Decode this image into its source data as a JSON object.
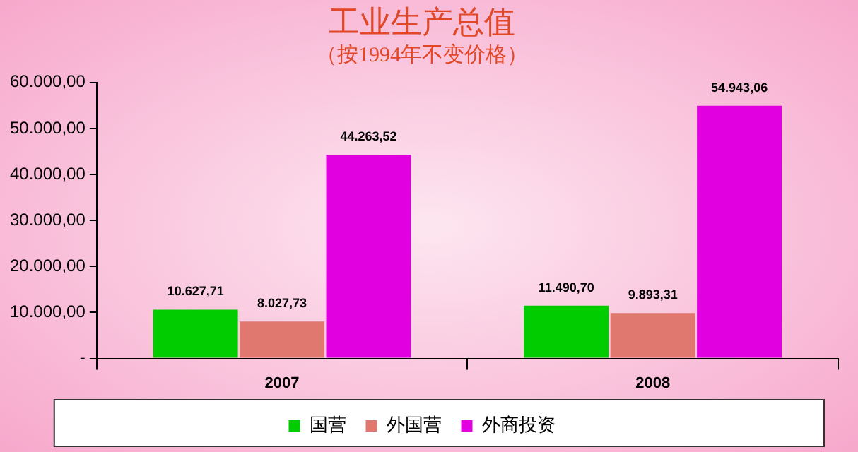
{
  "chart_data": {
    "type": "bar",
    "title": "工业生产总值",
    "subtitle": "（按1994年不变价格）",
    "categories": [
      "2007",
      "2008"
    ],
    "series": [
      {
        "name": "国营",
        "color": "#00cc00",
        "values": [
          10627.71,
          11490.7
        ],
        "value_labels": [
          "10.627,71",
          "11.490,70"
        ]
      },
      {
        "name": "外国营",
        "color": "#e07870",
        "values": [
          8027.73,
          9893.31
        ],
        "value_labels": [
          "8.027,73",
          "9.893,31"
        ]
      },
      {
        "name": "外商投资",
        "color": "#e000e0",
        "values": [
          44263.52,
          54943.06
        ],
        "value_labels": [
          "44.263,52",
          "54.943,06"
        ]
      }
    ],
    "ylim": [
      0,
      60000
    ],
    "yticks": [
      {
        "value": 0,
        "label": "-"
      },
      {
        "value": 10000,
        "label": "10.000,00"
      },
      {
        "value": 20000,
        "label": "20.000,00"
      },
      {
        "value": 30000,
        "label": "30.000,00"
      },
      {
        "value": 40000,
        "label": "40.000,00"
      },
      {
        "value": 50000,
        "label": "50.000,00"
      },
      {
        "value": 60000,
        "label": "60.000,00"
      }
    ],
    "grid": false,
    "legend": "bottom"
  }
}
